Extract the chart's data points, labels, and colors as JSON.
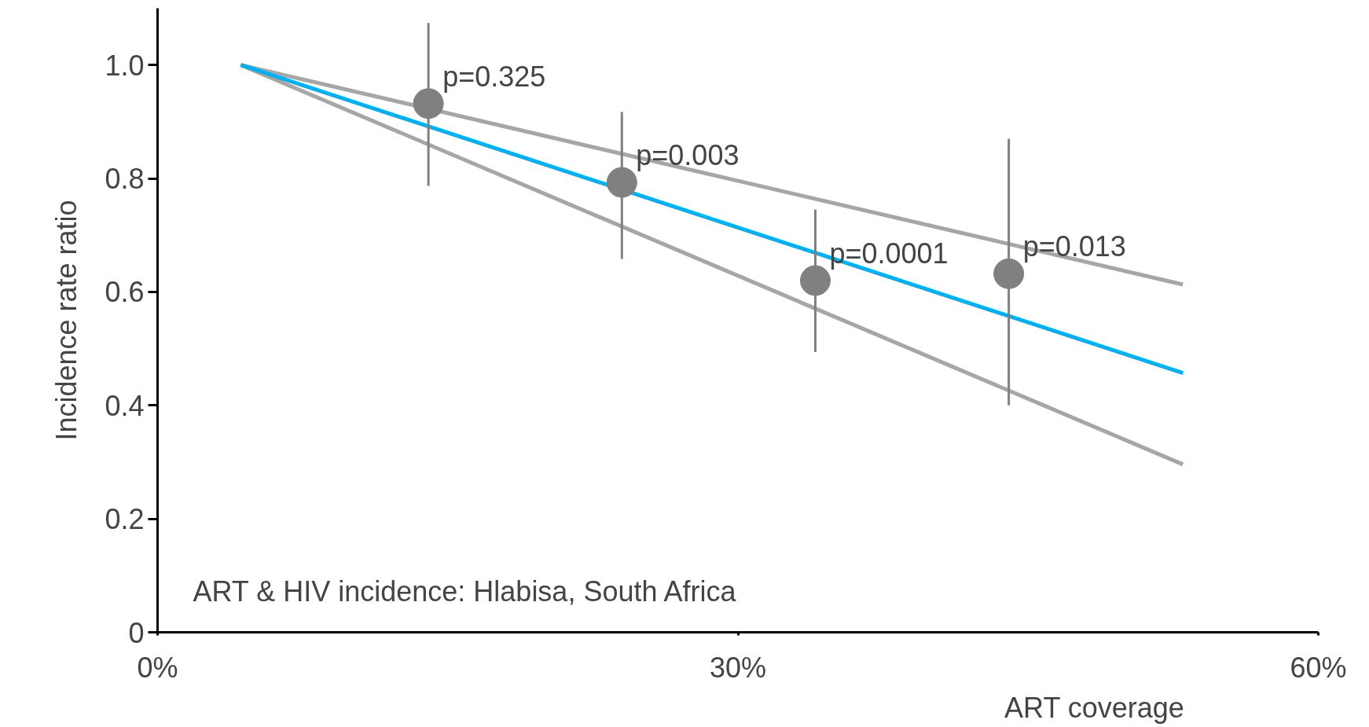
{
  "chart_data": {
    "type": "scatter",
    "xlabel": "ART coverage",
    "ylabel": "Incidence rate ratio",
    "xlim": [
      0,
      60
    ],
    "ylim": [
      0,
      1.1
    ],
    "xticks": [
      {
        "value": 0,
        "label": "0%"
      },
      {
        "value": 30,
        "label": "30%"
      },
      {
        "value": 60,
        "label": "60%"
      }
    ],
    "yticks": [
      {
        "value": 0,
        "label": "0"
      },
      {
        "value": 0.2,
        "label": "0.2"
      },
      {
        "value": 0.4,
        "label": "0.4"
      },
      {
        "value": 0.6,
        "label": "0.6"
      },
      {
        "value": 0.8,
        "label": "0.8"
      },
      {
        "value": 1.0,
        "label": "1.0"
      }
    ],
    "grid": false,
    "marker": "none",
    "series": [
      {
        "type": "line",
        "color": "#a6a6a6",
        "x": [
          4.3,
          53
        ],
        "values": [
          1.0,
          0.613
        ]
      },
      {
        "type": "line",
        "color": "#a6a6a6",
        "x": [
          4.3,
          53
        ],
        "values": [
          1.0,
          0.296
        ]
      },
      {
        "type": "line",
        "color": "#00b0f0",
        "x": [
          4.3,
          53
        ],
        "values": [
          1.0,
          0.457
        ]
      },
      {
        "marker": "circle",
        "color": "#808080",
        "x": [
          14,
          24,
          34,
          44
        ],
        "values": [
          0.932,
          0.793,
          0.62,
          0.632
        ],
        "errors": [
          [
            0.787,
            1.074
          ],
          [
            0.658,
            0.917
          ],
          [
            0.494,
            0.745
          ],
          [
            0.4,
            0.87
          ]
        ]
      }
    ],
    "annotations": [
      {
        "text": "p=0.325",
        "x": 14,
        "y": 0.932
      },
      {
        "text": "p=0.003",
        "x": 24,
        "y": 0.793
      },
      {
        "text": "p=0.0001",
        "x": 34,
        "y": 0.62
      },
      {
        "text": "p=0.013",
        "x": 44,
        "y": 0.632
      },
      "ART & HIV incidence: Hlabisa, South Africa"
    ]
  }
}
